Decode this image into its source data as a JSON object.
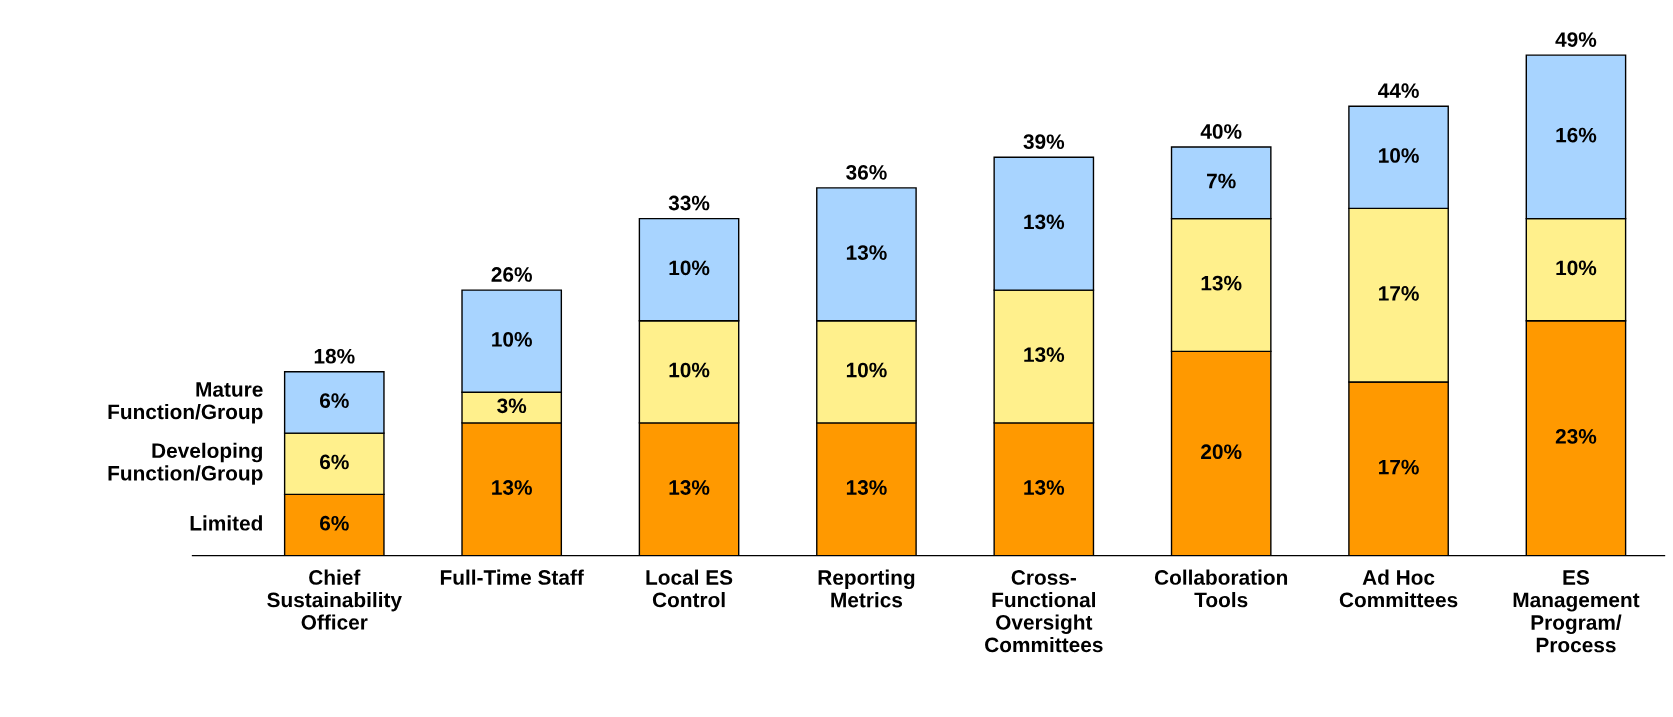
{
  "chart_data": {
    "type": "bar",
    "stacked": true,
    "categories": [
      "Chief\nSustainability\nOfficer",
      "Full-Time Staff",
      "Local ES\nControl",
      "Reporting\nMetrics",
      "Cross-\nFunctional\nOversight\nCommittees",
      "Collaboration\nTools",
      "Ad Hoc\nCommittees",
      "ES\nManagement\nProgram/\nProcess"
    ],
    "series": [
      {
        "name": "Limited",
        "color": "#ff9900",
        "values": [
          6,
          13,
          13,
          13,
          13,
          20,
          17,
          23
        ],
        "value_labels": [
          "6%",
          "13%",
          "13%",
          "13%",
          "13%",
          "20%",
          "17%",
          "23%"
        ]
      },
      {
        "name": "Developing\nFunction/Group",
        "color": "#fff08c",
        "values": [
          6,
          3,
          10,
          10,
          13,
          13,
          17,
          10
        ],
        "value_labels": [
          "6%",
          "3%",
          "10%",
          "10%",
          "13%",
          "13%",
          "17%",
          "10%"
        ]
      },
      {
        "name": "Mature\nFunction/Group",
        "color": "#a8d4ff",
        "values": [
          6,
          10,
          10,
          13,
          13,
          7,
          10,
          16
        ],
        "value_labels": [
          "6%",
          "10%",
          "10%",
          "13%",
          "13%",
          "7%",
          "10%",
          "16%"
        ]
      }
    ],
    "totals": [
      "18%",
      "26%",
      "33%",
      "36%",
      "39%",
      "40%",
      "44%",
      "49%"
    ]
  }
}
